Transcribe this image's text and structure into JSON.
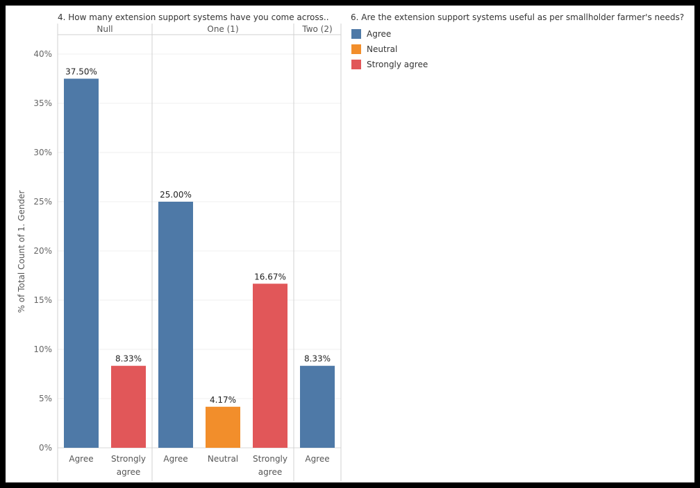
{
  "chart_data": {
    "type": "bar",
    "column_title": "4. How many extension support systems have you come across..",
    "legend_title": "6. Are the extension support systems useful as per smallholder farmer's needs?",
    "ylabel": "% of Total Count of 1. Gender",
    "ylim": [
      0,
      40
    ],
    "yticks": [
      "0%",
      "5%",
      "10%",
      "15%",
      "20%",
      "25%",
      "30%",
      "35%",
      "40%"
    ],
    "legend": [
      {
        "name": "Agree",
        "color": "#4e79a7"
      },
      {
        "name": "Neutral",
        "color": "#f28e2b"
      },
      {
        "name": "Strongly agree",
        "color": "#e15759"
      }
    ],
    "groups": [
      {
        "name": "Null",
        "bars": [
          {
            "category": "Agree",
            "value": 37.5,
            "label": "37.50%"
          },
          {
            "category": "Strongly agree",
            "value": 8.33,
            "label": "8.33%"
          }
        ]
      },
      {
        "name": "One (1)",
        "bars": [
          {
            "category": "Agree",
            "value": 25.0,
            "label": "25.00%"
          },
          {
            "category": "Neutral",
            "value": 4.17,
            "label": "4.17%"
          },
          {
            "category": "Strongly agree",
            "value": 16.67,
            "label": "16.67%"
          }
        ]
      },
      {
        "name": "Two (2)",
        "bars": [
          {
            "category": "Agree",
            "value": 8.33,
            "label": "8.33%"
          }
        ]
      }
    ]
  }
}
